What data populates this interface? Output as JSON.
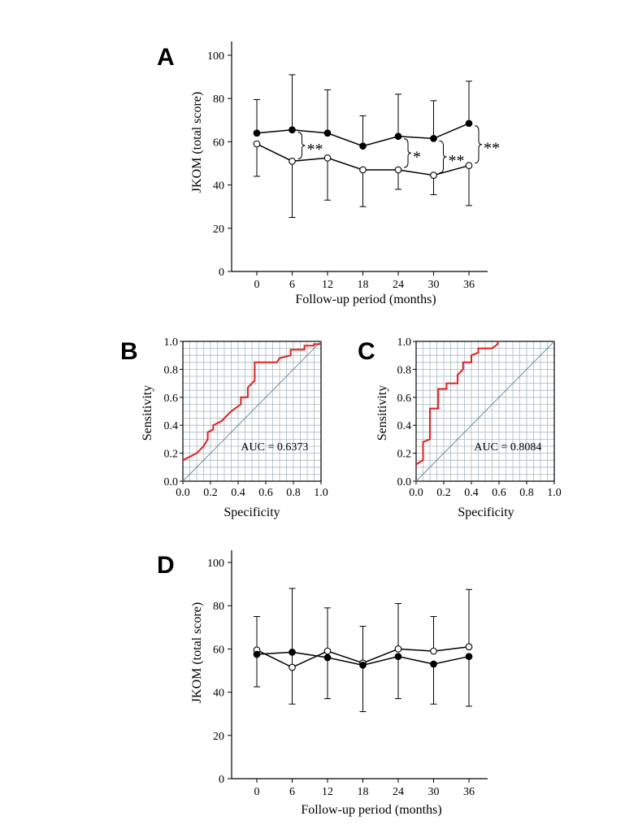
{
  "chart_data": [
    {
      "panel": "A",
      "type": "line",
      "ylabel": "JKOM (total score)",
      "xlabel": "Follow-up period (months)",
      "x": [
        0,
        6,
        12,
        18,
        24,
        30,
        36
      ],
      "xticks": [
        "0",
        "6",
        "12",
        "18",
        "24",
        "30",
        "36"
      ],
      "ylim": [
        0,
        100
      ],
      "yticks": [
        "0",
        "20",
        "40",
        "60",
        "80",
        "100"
      ],
      "yticks_values": [
        0,
        20,
        40,
        60,
        80,
        100
      ],
      "series": [
        {
          "name": "filled",
          "marker": "filled",
          "values": [
            64,
            65.5,
            64,
            58,
            62.5,
            61.5,
            68.5
          ],
          "err_upper": [
            79.5,
            91,
            84,
            72,
            82,
            79,
            88
          ]
        },
        {
          "name": "open",
          "marker": "open",
          "values": [
            59,
            51,
            52.5,
            47,
            47,
            44.5,
            49
          ],
          "err_lower": [
            44,
            25,
            33,
            30,
            38,
            35.5,
            30.5
          ]
        }
      ],
      "annotations": [
        {
          "between_index": 1,
          "text": "**"
        },
        {
          "between_index": 4,
          "text": "*"
        },
        {
          "between_index": 5,
          "text": "**"
        },
        {
          "between_index": 6,
          "text": "**"
        }
      ]
    },
    {
      "panel": "B",
      "type": "line",
      "subtype": "roc",
      "xlabel": "Specificity",
      "ylabel": "Sensitivity",
      "xticks": [
        "0.0",
        "0.2",
        "0.4",
        "0.6",
        "0.8",
        "1.0"
      ],
      "yticks": [
        "0.0",
        "0.2",
        "0.4",
        "0.6",
        "0.8",
        "1.0"
      ],
      "auc_label": "AUC = 0.6373",
      "curve": [
        [
          0.0,
          0.15
        ],
        [
          0.1,
          0.2
        ],
        [
          0.15,
          0.25
        ],
        [
          0.18,
          0.3
        ],
        [
          0.18,
          0.35
        ],
        [
          0.22,
          0.37
        ],
        [
          0.22,
          0.4
        ],
        [
          0.28,
          0.43
        ],
        [
          0.35,
          0.5
        ],
        [
          0.42,
          0.55
        ],
        [
          0.42,
          0.6
        ],
        [
          0.47,
          0.6
        ],
        [
          0.47,
          0.67
        ],
        [
          0.52,
          0.72
        ],
        [
          0.52,
          0.85
        ],
        [
          0.68,
          0.85
        ],
        [
          0.7,
          0.88
        ],
        [
          0.78,
          0.9
        ],
        [
          0.78,
          0.94
        ],
        [
          0.88,
          0.94
        ],
        [
          0.88,
          0.97
        ],
        [
          0.95,
          0.97
        ],
        [
          0.95,
          0.98
        ],
        [
          1.0,
          0.98
        ]
      ],
      "diagonal": [
        [
          0,
          0
        ],
        [
          1,
          1
        ]
      ]
    },
    {
      "panel": "C",
      "type": "line",
      "subtype": "roc",
      "xlabel": "Specificity",
      "ylabel": "Sensitivity",
      "xticks": [
        "0.0",
        "0.2",
        "0.4",
        "0.6",
        "0.8",
        "1.0"
      ],
      "yticks": [
        "0.0",
        "0.2",
        "0.4",
        "0.6",
        "0.8",
        "1.0"
      ],
      "auc_label": "AUC = 0.8084",
      "curve": [
        [
          0.0,
          0.12
        ],
        [
          0.05,
          0.15
        ],
        [
          0.05,
          0.28
        ],
        [
          0.1,
          0.3
        ],
        [
          0.1,
          0.52
        ],
        [
          0.16,
          0.52
        ],
        [
          0.16,
          0.66
        ],
        [
          0.22,
          0.66
        ],
        [
          0.22,
          0.7
        ],
        [
          0.3,
          0.7
        ],
        [
          0.3,
          0.76
        ],
        [
          0.34,
          0.8
        ],
        [
          0.34,
          0.85
        ],
        [
          0.4,
          0.85
        ],
        [
          0.4,
          0.9
        ],
        [
          0.45,
          0.92
        ],
        [
          0.45,
          0.95
        ],
        [
          0.55,
          0.95
        ],
        [
          0.59,
          0.98
        ],
        [
          0.59,
          1.0
        ]
      ],
      "diagonal": [
        [
          0,
          0
        ],
        [
          1,
          1
        ]
      ]
    },
    {
      "panel": "D",
      "type": "line",
      "ylabel": "JKOM (total score)",
      "xlabel": "Follow-up period (months)",
      "x": [
        0,
        6,
        12,
        18,
        24,
        30,
        36
      ],
      "xticks": [
        "0",
        "6",
        "12",
        "18",
        "24",
        "30",
        "36"
      ],
      "ylim": [
        0,
        100
      ],
      "yticks": [
        "0",
        "20",
        "40",
        "60",
        "80",
        "100"
      ],
      "yticks_values": [
        0,
        20,
        40,
        60,
        80,
        100
      ],
      "series": [
        {
          "name": "open",
          "marker": "open",
          "values": [
            59.5,
            51.5,
            59,
            53.5,
            60,
            59,
            61
          ],
          "err_upper": [
            75,
            88,
            79,
            70.5,
            81,
            75,
            87.5
          ]
        },
        {
          "name": "filled",
          "marker": "filled",
          "values": [
            57.5,
            58.5,
            56,
            52.5,
            56.5,
            53,
            56.5
          ],
          "err_lower": [
            42.5,
            34.5,
            37,
            31,
            37,
            34.5,
            33.5
          ]
        }
      ]
    }
  ],
  "colors": {
    "roc_curve": "#e02020",
    "diagonal": "#6f8f9f",
    "grid": "#a9b8c2",
    "ink": "#000000"
  }
}
